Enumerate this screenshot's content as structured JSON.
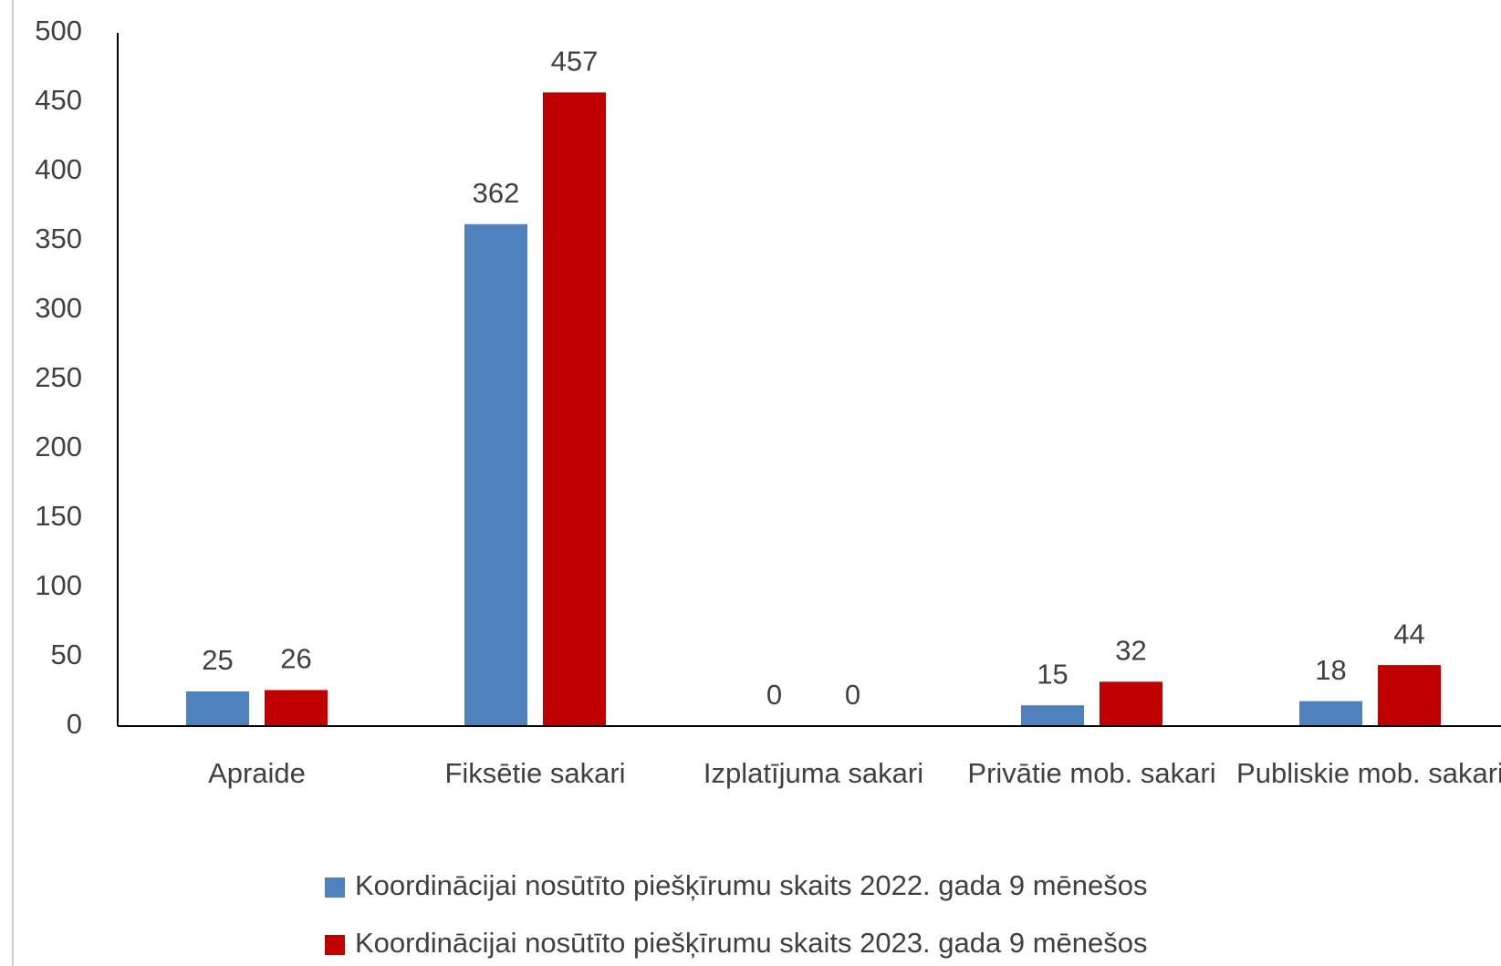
{
  "chart_data": {
    "type": "bar",
    "categories": [
      "Apraide",
      "Fiksētie sakari",
      "Izplatījuma sakari",
      "Privātie mob. sakari",
      "Publiskie mob. sakari"
    ],
    "series": [
      {
        "name": "Koordinācijai nosūtīto piešķīrumu skaits 2022. gada 9 mēnešos",
        "color": "#4f81bd",
        "values": [
          25,
          362,
          0,
          15,
          18
        ]
      },
      {
        "name": "Koordinācijai nosūtīto piešķīrumu skaits 2023. gada 9 mēnešos",
        "color": "#c00000",
        "values": [
          26,
          457,
          0,
          32,
          44
        ]
      }
    ],
    "ylim": [
      0,
      500
    ],
    "yticks": [
      0,
      50,
      100,
      150,
      200,
      250,
      300,
      350,
      400,
      450,
      500
    ],
    "grid": false
  }
}
